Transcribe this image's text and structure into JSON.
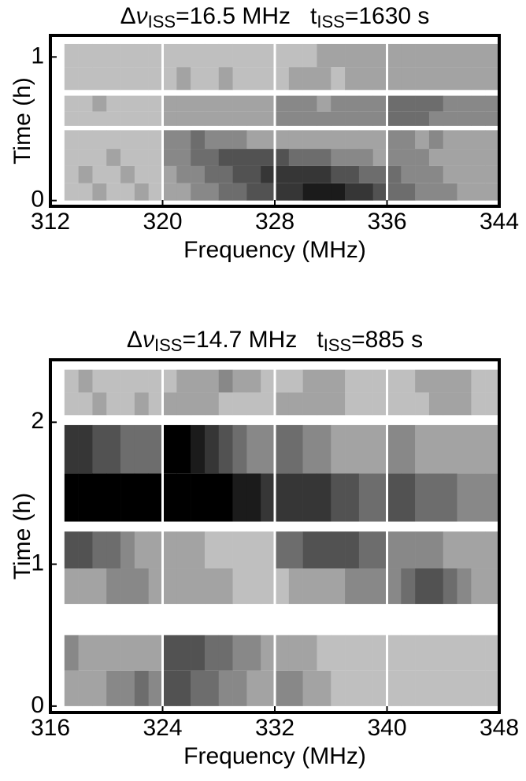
{
  "chart_data": [
    {
      "type": "heatmap",
      "title": [
        {
          "text": "Δ",
          "style": "normal"
        },
        {
          "text": "ν",
          "style": "italic"
        },
        {
          "text": "ISS",
          "style": "sub"
        },
        {
          "text": "=16.5 MHz   t",
          "style": "normal"
        },
        {
          "text": "ISS",
          "style": "sub"
        },
        {
          "text": "=1630 s",
          "style": "normal"
        }
      ],
      "x_label": "Frequency (MHz)",
      "y_label": "Time (h)",
      "xlim": [
        312,
        344
      ],
      "xticks": [
        312,
        320,
        328,
        336,
        344
      ],
      "ylim": [
        -0.04,
        1.15
      ],
      "yticks": [
        0,
        1
      ],
      "zlim": [
        0,
        9
      ],
      "x_bins": [
        312,
        313,
        314,
        315,
        316,
        317,
        318,
        319,
        320,
        321,
        322,
        323,
        324,
        325,
        326,
        327,
        328,
        329,
        330,
        331,
        332,
        333,
        334,
        335,
        336,
        337,
        338,
        339,
        340,
        341,
        342,
        343,
        344
      ],
      "y_bins": [
        0,
        0.12,
        0.24,
        0.36,
        0.49,
        0.52,
        0.62,
        0.73,
        0.77,
        0.93,
        1.09
      ],
      "values": [
        [
          null,
          2,
          2,
          3,
          2,
          2,
          3,
          2,
          3,
          3,
          4,
          4,
          5,
          5,
          6,
          6,
          7,
          7,
          8,
          8,
          8,
          7,
          7,
          6,
          5,
          5,
          4,
          4,
          4,
          3,
          3,
          3
        ],
        [
          null,
          2,
          3,
          2,
          2,
          3,
          2,
          2,
          3,
          4,
          4,
          5,
          5,
          6,
          6,
          7,
          7,
          7,
          7,
          7,
          6,
          6,
          5,
          5,
          5,
          4,
          4,
          4,
          3,
          3,
          3,
          3
        ],
        [
          null,
          2,
          2,
          2,
          3,
          2,
          2,
          2,
          4,
          4,
          5,
          5,
          6,
          6,
          6,
          6,
          6,
          5,
          5,
          5,
          4,
          4,
          4,
          3,
          4,
          4,
          4,
          3,
          3,
          3,
          3,
          3
        ],
        [
          null,
          2,
          2,
          2,
          2,
          2,
          2,
          2,
          4,
          4,
          5,
          4,
          4,
          4,
          3,
          3,
          3,
          3,
          3,
          3,
          3,
          3,
          3,
          3,
          4,
          4,
          3,
          4,
          3,
          3,
          3,
          3
        ],
        null,
        [
          null,
          2,
          2,
          2,
          2,
          2,
          2,
          2,
          3,
          3,
          3,
          3,
          3,
          3,
          3,
          3,
          4,
          4,
          4,
          4,
          4,
          4,
          4,
          4,
          5,
          5,
          5,
          4,
          4,
          4,
          4,
          4
        ],
        [
          null,
          2,
          2,
          3,
          2,
          2,
          2,
          2,
          3,
          3,
          3,
          3,
          3,
          3,
          3,
          3,
          4,
          4,
          4,
          3,
          4,
          4,
          4,
          4,
          5,
          5,
          5,
          5,
          4,
          4,
          4,
          4
        ],
        null,
        [
          null,
          2,
          2,
          2,
          2,
          2,
          2,
          2,
          2,
          3,
          2,
          2,
          3,
          2,
          2,
          2,
          2,
          3,
          3,
          3,
          2,
          3,
          3,
          3,
          3,
          3,
          3,
          3,
          3,
          3,
          3,
          3
        ],
        [
          null,
          2,
          2,
          2,
          2,
          2,
          2,
          2,
          2,
          2,
          2,
          2,
          2,
          2,
          2,
          2,
          2,
          2,
          2,
          3,
          3,
          3,
          3,
          3,
          3,
          3,
          3,
          3,
          3,
          3,
          3,
          3
        ]
      ]
    },
    {
      "type": "heatmap",
      "title": [
        {
          "text": "Δ",
          "style": "normal"
        },
        {
          "text": "ν",
          "style": "italic"
        },
        {
          "text": "ISS",
          "style": "sub"
        },
        {
          "text": "=14.7 MHz   t",
          "style": "normal"
        },
        {
          "text": "ISS",
          "style": "sub"
        },
        {
          "text": "=885 s",
          "style": "normal"
        }
      ],
      "x_label": "Frequency (MHz)",
      "y_label": "Time (h)",
      "xlim": [
        316,
        348
      ],
      "xticks": [
        316,
        324,
        332,
        340,
        348
      ],
      "ylim": [
        -0.045,
        2.44
      ],
      "yticks": [
        0,
        1,
        2
      ],
      "zlim": [
        0,
        9
      ],
      "x_bins": [
        316,
        317,
        318,
        319,
        320,
        321,
        322,
        323,
        324,
        325,
        326,
        327,
        328,
        329,
        330,
        331,
        332,
        333,
        334,
        335,
        336,
        337,
        338,
        339,
        340,
        341,
        342,
        343,
        344,
        345,
        346,
        347,
        348
      ],
      "y_bins": [
        0,
        0.25,
        0.5,
        0.72,
        0.97,
        1.23,
        1.3,
        1.64,
        1.98,
        2.05,
        2.21,
        2.37
      ],
      "values": [
        [
          null,
          3,
          3,
          3,
          4,
          4,
          5,
          4,
          6,
          6,
          5,
          5,
          4,
          4,
          3,
          3,
          4,
          4,
          3,
          3,
          2,
          2,
          2,
          2,
          2,
          2,
          2,
          2,
          2,
          2,
          2,
          2
        ],
        [
          null,
          4,
          3,
          3,
          3,
          3,
          3,
          3,
          6,
          6,
          6,
          5,
          5,
          4,
          4,
          3,
          3,
          3,
          3,
          2,
          2,
          2,
          2,
          2,
          2,
          2,
          2,
          2,
          2,
          2,
          2,
          2
        ],
        null,
        [
          null,
          3,
          3,
          3,
          4,
          4,
          4,
          3,
          3,
          3,
          3,
          3,
          3,
          2,
          2,
          2,
          2,
          3,
          3,
          3,
          3,
          4,
          4,
          4,
          4,
          5,
          6,
          6,
          5,
          4,
          3,
          3
        ],
        [
          null,
          6,
          6,
          5,
          5,
          4,
          3,
          3,
          3,
          3,
          3,
          2,
          2,
          2,
          2,
          2,
          5,
          5,
          6,
          6,
          6,
          6,
          5,
          5,
          4,
          4,
          4,
          4,
          3,
          3,
          3,
          3
        ],
        null,
        [
          null,
          9,
          9,
          9,
          9,
          9,
          9,
          9,
          9,
          9,
          9,
          9,
          9,
          8,
          8,
          7,
          7,
          7,
          7,
          7,
          6,
          6,
          5,
          5,
          6,
          6,
          5,
          5,
          5,
          4,
          4,
          4
        ],
        [
          null,
          7,
          7,
          6,
          6,
          5,
          5,
          5,
          9,
          9,
          8,
          7,
          6,
          5,
          4,
          4,
          5,
          5,
          4,
          4,
          3,
          3,
          3,
          3,
          4,
          4,
          3,
          3,
          3,
          3,
          3,
          3
        ],
        null,
        [
          null,
          2,
          2,
          3,
          2,
          2,
          3,
          2,
          3,
          3,
          3,
          3,
          2,
          2,
          2,
          2,
          3,
          3,
          3,
          3,
          3,
          2,
          2,
          2,
          2,
          2,
          2,
          3,
          3,
          3,
          2,
          2
        ],
        [
          null,
          2,
          3,
          2,
          2,
          2,
          2,
          2,
          2,
          3,
          3,
          3,
          4,
          3,
          3,
          2,
          2,
          2,
          3,
          3,
          3,
          2,
          2,
          2,
          2,
          2,
          3,
          3,
          3,
          3,
          2,
          2
        ]
      ]
    }
  ]
}
